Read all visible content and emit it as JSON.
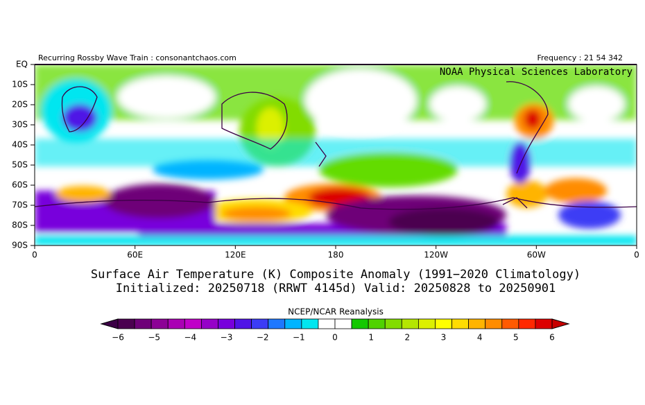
{
  "header": {
    "left": "Recurring Rossby Wave Train : consonantchaos.com",
    "right": "Frequency : 21 54 342",
    "lab": "NOAA Physical Sciences Laboratory"
  },
  "map": {
    "lat_labels": [
      "EQ",
      "10S",
      "20S",
      "30S",
      "40S",
      "50S",
      "60S",
      "70S",
      "80S",
      "90S"
    ],
    "lon_labels": [
      "0",
      "60E",
      "120E",
      "180",
      "120W",
      "60W",
      "0"
    ]
  },
  "title": {
    "line1": "Surface Air Temperature (K) Composite Anomaly (1991−2020 Climatology)",
    "line2": "Initialized: 20250718 (RRWT 4145d) Valid: 20250828 to 20250901"
  },
  "colorbar": {
    "source": "NCEP/NCAR Reanalysis",
    "labels": [
      "−6",
      "−5",
      "−4",
      "−3",
      "−2",
      "−1",
      "0",
      "1",
      "2",
      "3",
      "4",
      "5",
      "6"
    ],
    "low_color": "#3c0046",
    "high_color": "#c80000",
    "colors": [
      "#4b0050",
      "#6e0078",
      "#8c0096",
      "#aa00b4",
      "#c000c8",
      "#9600c8",
      "#7800dc",
      "#5014e6",
      "#3c3cf5",
      "#1e78ff",
      "#00b4ff",
      "#00e6f0",
      "#ffffff",
      "#ffffff",
      "#14c800",
      "#50d200",
      "#82dc00",
      "#b4e600",
      "#dcf000",
      "#ffff00",
      "#ffdc00",
      "#ffb400",
      "#ff8c00",
      "#ff5a00",
      "#ff2800",
      "#dc0000"
    ]
  }
}
